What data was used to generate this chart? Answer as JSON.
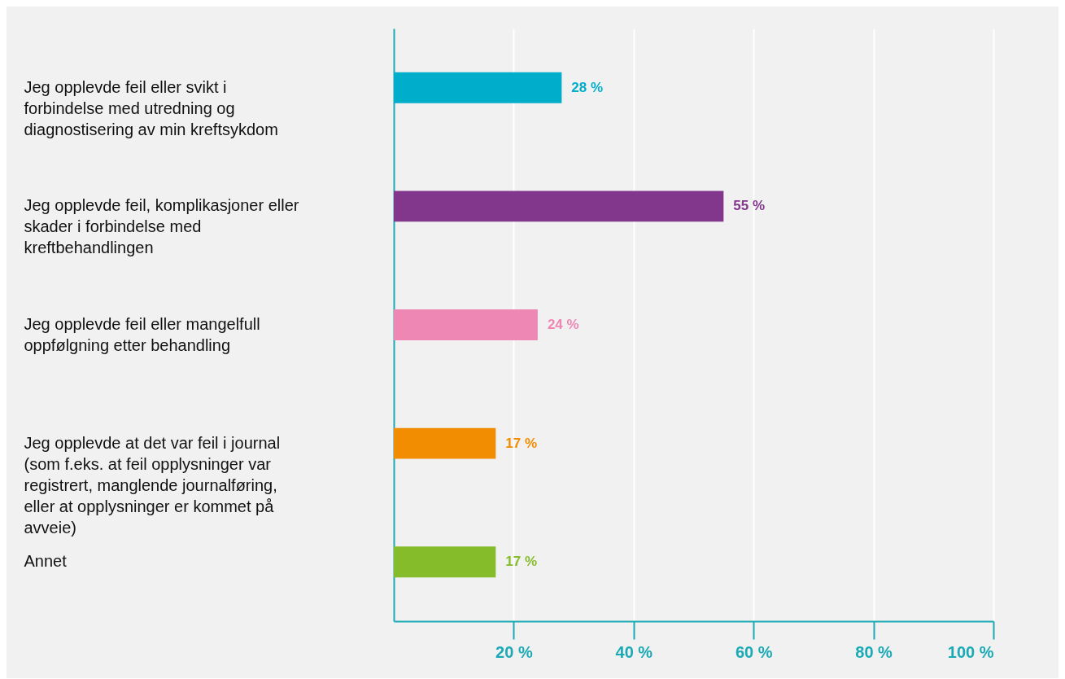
{
  "chart_data": {
    "type": "bar",
    "orientation": "horizontal",
    "categories": [
      "Jeg opplevde feil eller svikt i forbindelse med utredning og diagnostisering av min kreftsykdom",
      "Jeg opplevde feil, komplikasjoner eller skader i forbindelse med kreftbehandlingen",
      "Jeg opplevde feil eller mangelfull oppfølgning etter behandling",
      "Jeg opplevde at det var feil i journal (som f.eks. at feil opplysninger var registrert, manglende journalføring, eller at opplysninger er kommet på avveie)",
      "Annet"
    ],
    "values": [
      28,
      55,
      24,
      17,
      17
    ],
    "colors": [
      "#00aecb",
      "#82378c",
      "#ee87b4",
      "#f28c00",
      "#84bd29"
    ],
    "value_labels": [
      "28 %",
      "55 %",
      "24 %",
      "17 %",
      "17 %"
    ],
    "xlim": [
      0,
      100
    ],
    "xticks": [
      {
        "value": 20,
        "label": "20 %"
      },
      {
        "value": 40,
        "label": "40 %"
      },
      {
        "value": 60,
        "label": "60 %"
      },
      {
        "value": 80,
        "label": "80 %"
      },
      {
        "value": 100,
        "label": "100 %"
      }
    ],
    "grid": "x"
  }
}
